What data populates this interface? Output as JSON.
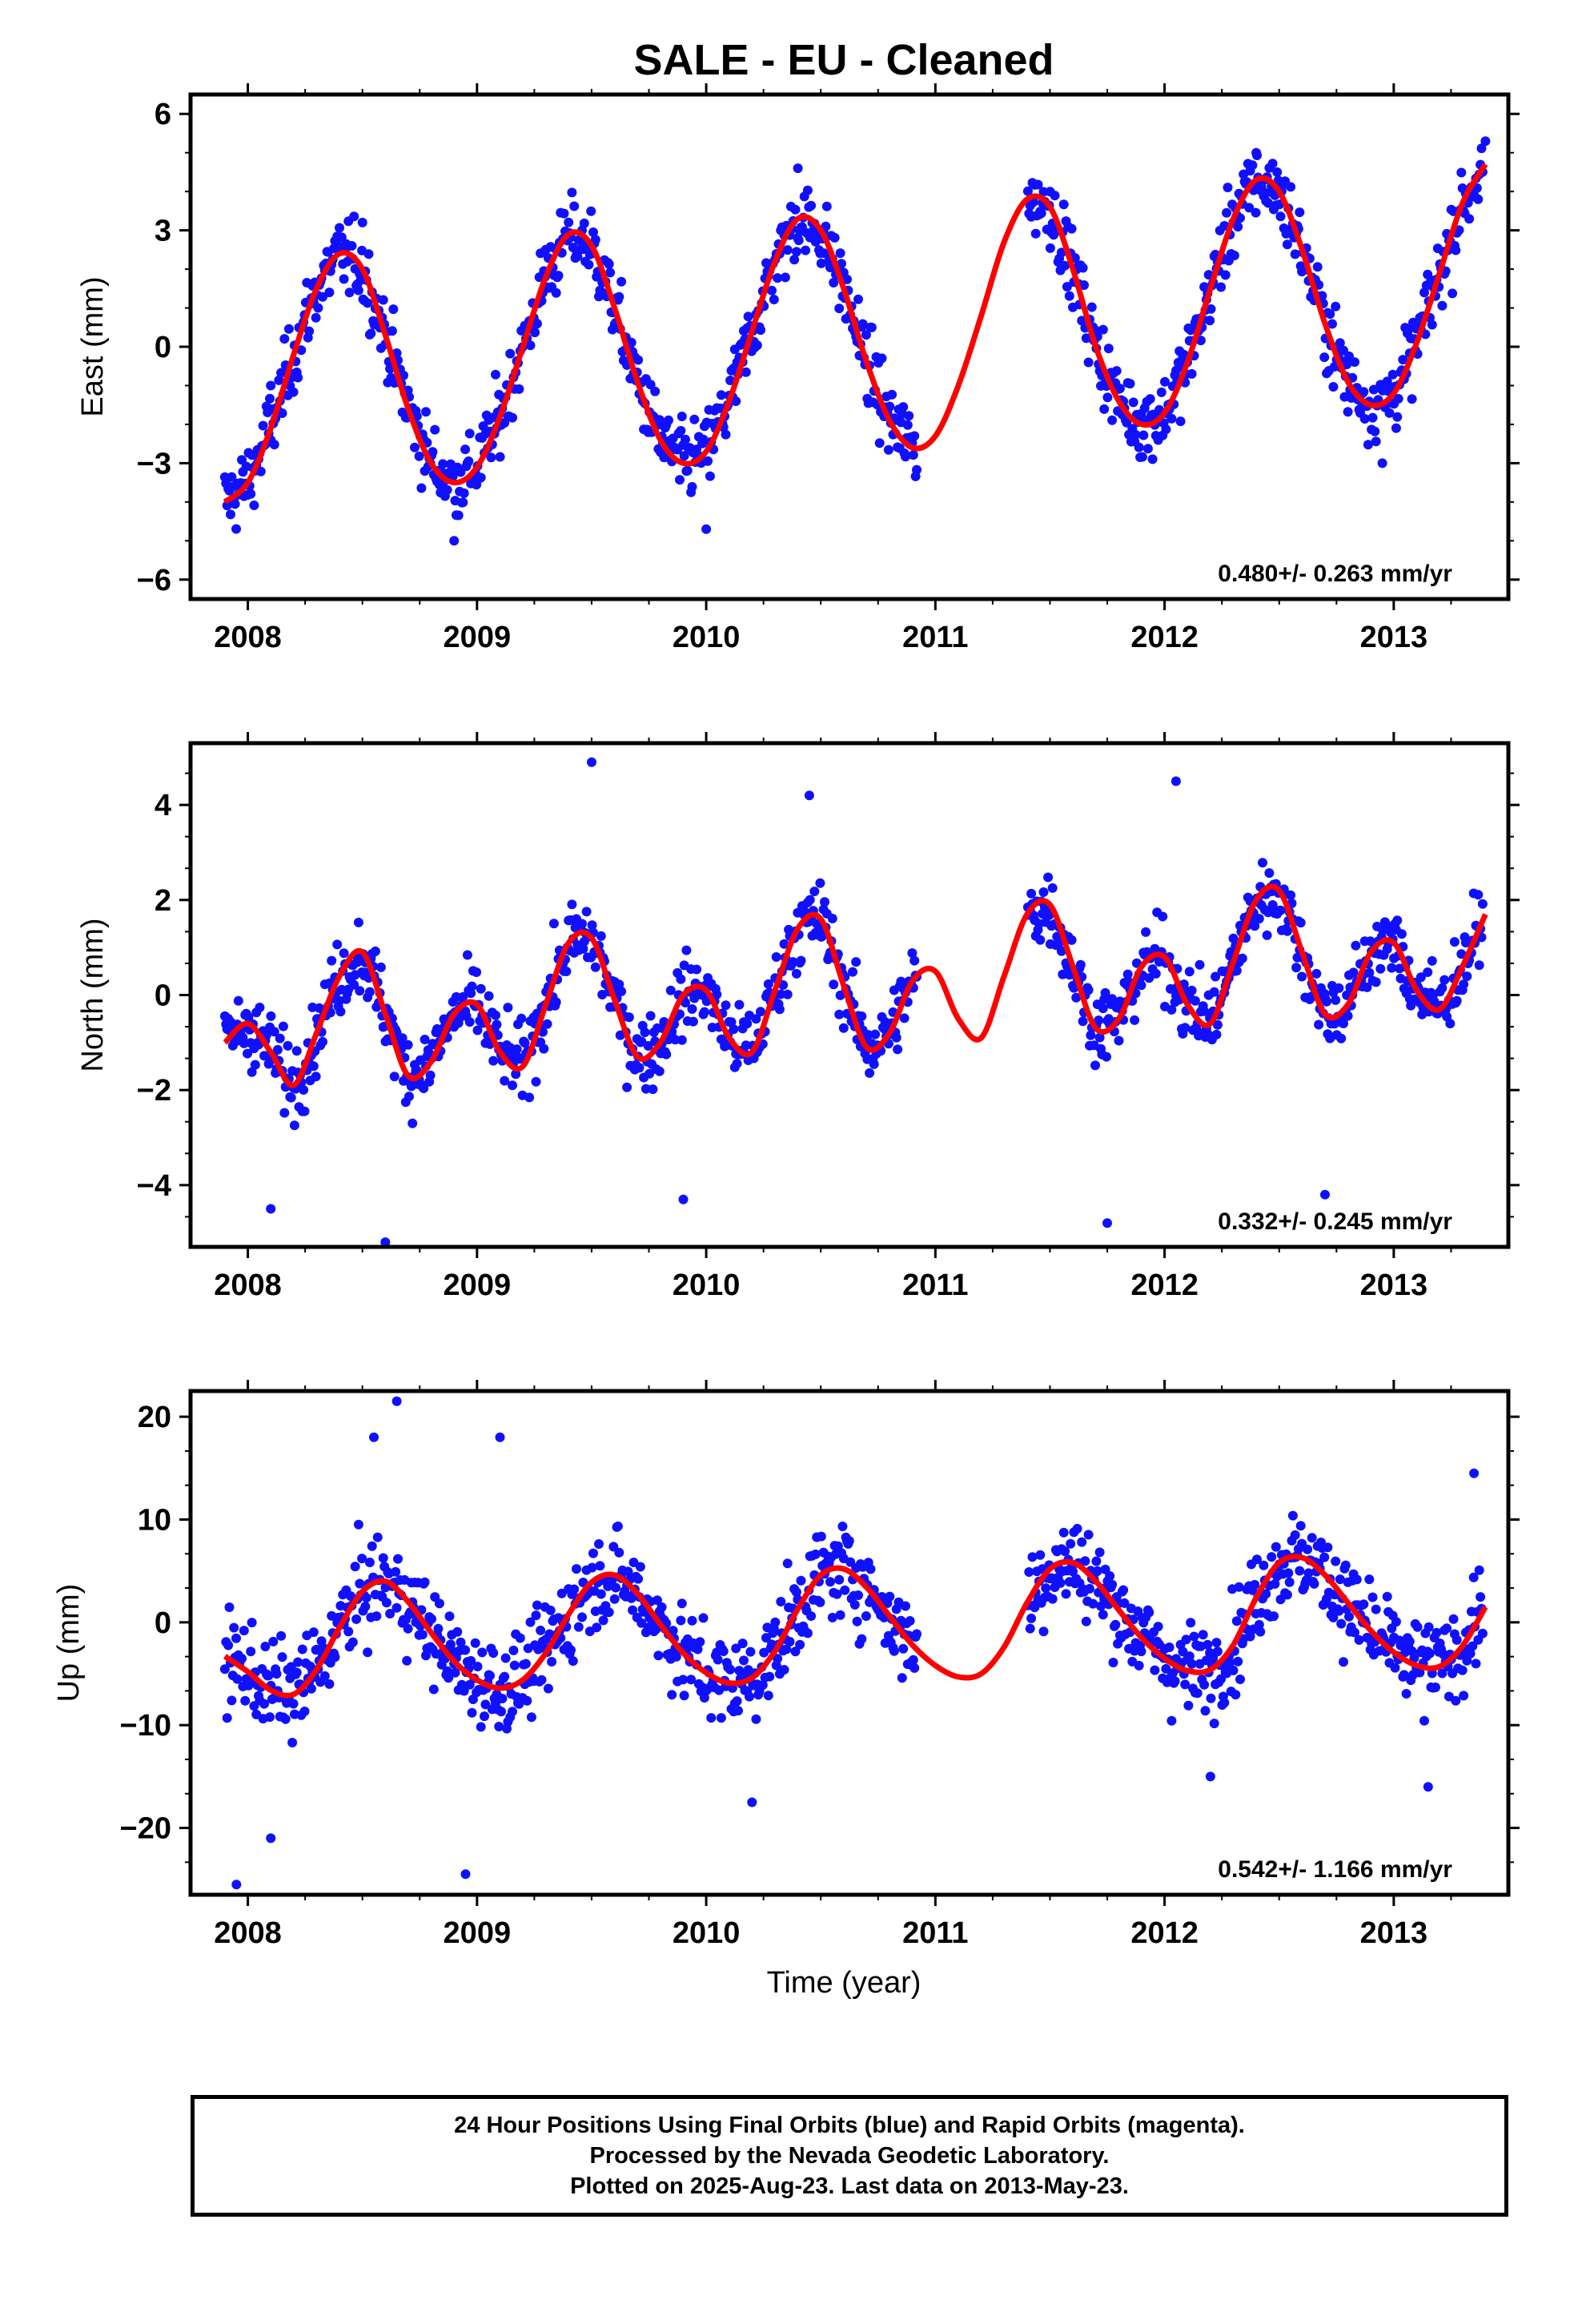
{
  "title": "SALE  - EU - Cleaned",
  "colors": {
    "data": "#1010ff",
    "model": "#ff0000",
    "frame": "#000000"
  },
  "xlabel": "Time (year)",
  "caption": [
    "24 Hour Positions Using Final Orbits (blue) and Rapid Orbits (magenta).",
    "Processed by the Nevada Geodetic Laboratory.",
    "Plotted on 2025-Aug-23. Last data on 2013-May-23."
  ],
  "chart_data": [
    {
      "type": "scatter",
      "name": "east",
      "ylabel": "East (mm)",
      "xlim": [
        2007.75,
        2013.5
      ],
      "ylim": [
        -6.5,
        6.5
      ],
      "x_ticks": [
        2008,
        2009,
        2010,
        2011,
        2012,
        2013
      ],
      "y_ticks": [
        -6,
        -3,
        0,
        3,
        6
      ],
      "y_tick_labels": [
        "−6",
        "−3",
        "0",
        "3",
        "6"
      ],
      "rate_label": "0.480+/- 0.263 mm/yr",
      "model": {
        "x": [
          2007.9,
          2008.0,
          2008.1,
          2008.2,
          2008.3,
          2008.4,
          2008.5,
          2008.6,
          2008.7,
          2008.8,
          2008.9,
          2009.0,
          2009.1,
          2009.2,
          2009.3,
          2009.4,
          2009.5,
          2009.6,
          2009.7,
          2009.8,
          2009.9,
          2010.0,
          2010.1,
          2010.2,
          2010.3,
          2010.4,
          2010.5,
          2010.6,
          2010.7,
          2010.8,
          2010.9,
          2011.0,
          2011.1,
          2011.2,
          2011.3,
          2011.4,
          2011.5,
          2011.6,
          2011.7,
          2011.8,
          2011.9,
          2012.0,
          2012.1,
          2012.2,
          2012.3,
          2012.4,
          2012.5,
          2012.6,
          2012.7,
          2012.8,
          2012.9,
          2013.0,
          2013.1,
          2013.2,
          2013.3,
          2013.4
        ],
        "y": [
          -4.0,
          -3.5,
          -2.1,
          -0.2,
          1.5,
          2.4,
          2.0,
          0.3,
          -1.6,
          -3.0,
          -3.5,
          -3.1,
          -1.8,
          0.0,
          1.8,
          2.9,
          2.6,
          1.0,
          -0.9,
          -2.4,
          -3.0,
          -2.7,
          -1.4,
          0.4,
          2.2,
          3.3,
          3.0,
          1.5,
          -0.4,
          -1.9,
          -2.6,
          -2.3,
          -1.0,
          0.8,
          2.7,
          3.8,
          3.6,
          2.0,
          0.0,
          -1.4,
          -2.0,
          -1.7,
          -0.4,
          1.5,
          3.3,
          4.3,
          4.0,
          2.5,
          0.6,
          -0.9,
          -1.5,
          -1.2,
          0.1,
          1.9,
          3.7,
          4.7
        ]
      },
      "sample_points": [
        [
          2008.1,
          -1.0
        ],
        [
          2008.5,
          3.2
        ],
        [
          2009.3,
          2.5
        ],
        [
          2010.4,
          4.6
        ],
        [
          2011.5,
          4.0
        ],
        [
          2012.4,
          5.0
        ],
        [
          2013.4,
          5.3
        ],
        [
          2008.9,
          -5.0
        ],
        [
          2010.0,
          -4.7
        ],
        [
          2012.95,
          -3.0
        ]
      ]
    },
    {
      "type": "scatter",
      "name": "north",
      "ylabel": "North (mm)",
      "xlim": [
        2007.75,
        2013.5
      ],
      "ylim": [
        -5.3,
        5.3
      ],
      "x_ticks": [
        2008,
        2009,
        2010,
        2011,
        2012,
        2013
      ],
      "y_ticks": [
        -4,
        -2,
        0,
        2,
        4
      ],
      "y_tick_labels": [
        "−4",
        "−2",
        "0",
        "2",
        "4"
      ],
      "rate_label": "0.332+/- 0.245 mm/yr",
      "model": {
        "x": [
          2007.9,
          2008.0,
          2008.1,
          2008.2,
          2008.3,
          2008.4,
          2008.5,
          2008.6,
          2008.7,
          2008.8,
          2008.9,
          2009.0,
          2009.1,
          2009.2,
          2009.3,
          2009.4,
          2009.5,
          2009.6,
          2009.7,
          2009.8,
          2009.9,
          2010.0,
          2010.1,
          2010.2,
          2010.3,
          2010.4,
          2010.5,
          2010.6,
          2010.7,
          2010.8,
          2010.9,
          2011.0,
          2011.1,
          2011.2,
          2011.3,
          2011.4,
          2011.5,
          2011.6,
          2011.7,
          2011.8,
          2011.9,
          2012.0,
          2012.1,
          2012.2,
          2012.3,
          2012.4,
          2012.5,
          2012.6,
          2012.7,
          2012.8,
          2012.9,
          2013.0,
          2013.1,
          2013.2,
          2013.3,
          2013.4
        ],
        "y": [
          -1.0,
          -0.6,
          -1.2,
          -1.9,
          -0.8,
          0.4,
          0.9,
          -0.4,
          -1.7,
          -1.4,
          -0.4,
          -0.2,
          -1.2,
          -1.5,
          -0.2,
          1.1,
          1.2,
          -0.1,
          -1.3,
          -1.0,
          0.0,
          0.1,
          -0.9,
          -1.2,
          0.1,
          1.4,
          1.6,
          0.2,
          -1.1,
          -0.8,
          0.3,
          0.5,
          -0.5,
          -0.9,
          0.4,
          1.7,
          1.9,
          0.6,
          -0.7,
          -0.5,
          0.6,
          0.8,
          -0.2,
          -0.6,
          0.7,
          2.0,
          2.2,
          0.9,
          -0.4,
          -0.2,
          0.9,
          1.1,
          0.1,
          -0.3,
          0.6,
          1.7
        ]
      },
      "sample_points": [
        [
          2009.5,
          4.9
        ],
        [
          2012.05,
          4.5
        ],
        [
          2010.45,
          4.2
        ],
        [
          2008.1,
          -4.5
        ],
        [
          2008.6,
          -5.2
        ],
        [
          2009.9,
          -4.3
        ],
        [
          2011.75,
          -4.8
        ],
        [
          2012.7,
          -4.2
        ]
      ]
    },
    {
      "type": "scatter",
      "name": "up",
      "ylabel": "Up (mm)",
      "xlim": [
        2007.75,
        2013.5
      ],
      "ylim": [
        -26.5,
        22.5
      ],
      "x_ticks": [
        2008,
        2009,
        2010,
        2011,
        2012,
        2013
      ],
      "x_tick_labels": [
        "2008",
        "2009",
        "2010",
        "2011",
        "2012",
        "2013"
      ],
      "y_ticks": [
        -20,
        -10,
        0,
        10,
        20
      ],
      "y_tick_labels": [
        "−20",
        "−10",
        "0",
        "10",
        "20"
      ],
      "rate_label": "0.542+/- 1.166 mm/yr",
      "model": {
        "x": [
          2007.9,
          2008.0,
          2008.1,
          2008.2,
          2008.3,
          2008.4,
          2008.5,
          2008.6,
          2008.7,
          2008.8,
          2008.9,
          2009.0,
          2009.1,
          2009.2,
          2009.3,
          2009.4,
          2009.5,
          2009.6,
          2009.7,
          2009.8,
          2009.9,
          2010.0,
          2010.1,
          2010.2,
          2010.3,
          2010.4,
          2010.5,
          2010.6,
          2010.7,
          2010.8,
          2010.9,
          2011.0,
          2011.1,
          2011.2,
          2011.3,
          2011.4,
          2011.5,
          2011.6,
          2011.7,
          2011.8,
          2011.9,
          2012.0,
          2012.1,
          2012.2,
          2012.3,
          2012.4,
          2012.5,
          2012.6,
          2012.7,
          2012.8,
          2012.9,
          2013.0,
          2013.1,
          2013.2,
          2013.3,
          2013.4
        ],
        "y": [
          -3.3,
          -4.8,
          -6.6,
          -7.0,
          -4.6,
          -0.5,
          3.0,
          4.0,
          2.0,
          -1.0,
          -3.8,
          -5.6,
          -6.4,
          -5.6,
          -3.0,
          0.8,
          3.9,
          4.6,
          2.8,
          -0.2,
          -3.0,
          -4.9,
          -5.9,
          -5.4,
          -2.8,
          1.3,
          4.6,
          5.2,
          3.4,
          0.6,
          -2.2,
          -4.2,
          -5.3,
          -5.0,
          -2.4,
          1.9,
          5.2,
          5.8,
          4.0,
          1.2,
          -1.5,
          -3.5,
          -4.7,
          -4.6,
          -2.2,
          2.4,
          5.8,
          6.3,
          4.6,
          1.9,
          -0.8,
          -2.9,
          -4.2,
          -4.3,
          -2.3,
          1.5
        ]
      },
      "sample_points": [
        [
          2008.55,
          18.0
        ],
        [
          2008.65,
          21.5
        ],
        [
          2009.1,
          18.0
        ],
        [
          2007.95,
          -25.5
        ],
        [
          2008.1,
          -21.0
        ],
        [
          2008.95,
          -24.5
        ],
        [
          2010.2,
          -17.5
        ],
        [
          2012.2,
          -15.0
        ],
        [
          2013.15,
          -16.0
        ],
        [
          2013.35,
          14.5
        ]
      ]
    }
  ]
}
